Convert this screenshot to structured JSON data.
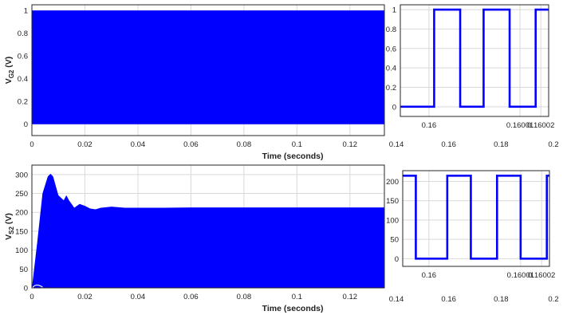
{
  "colors": {
    "signal": "#0000ff",
    "grid": "#d9d9d9",
    "axis": "#262626",
    "background": "#ffffff"
  },
  "chart_data": [
    {
      "id": "vg2-main",
      "type": "area",
      "description_series": "PWM gate signal switching between 0 and 1 at high frequency (dense band)",
      "xlabel": "Time (seconds)",
      "ylabel": "V",
      "ylabel_sub": "G2",
      "ylabel_unit": "(V)",
      "xlim": [
        0,
        0.133
      ],
      "ylim": [
        -0.1,
        1.05
      ],
      "xticks": [
        0,
        0.02,
        0.04,
        0.06,
        0.08,
        0.1,
        0.12
      ],
      "xticklabels": [
        "0",
        "0.02",
        "0.04",
        "0.06",
        "0.08",
        "0.1",
        "0.12"
      ],
      "yticks": [
        0,
        0.2,
        0.4,
        0.6,
        0.8,
        1
      ],
      "yticklabels": [
        "0",
        "0.2",
        "0.4",
        "0.6",
        "0.8",
        "1"
      ],
      "series": [
        {
          "x": [
            0,
            0.133
          ],
          "y_min": [
            0,
            0
          ],
          "y_max": [
            1,
            1
          ]
        }
      ],
      "grid": true
    },
    {
      "id": "vg2-zoom",
      "type": "line",
      "xlim": [
        0.159964,
        0.160021
      ],
      "ylim": [
        -0.1,
        1.05
      ],
      "xticks": [
        0.159975,
        0.16001,
        0.160018
      ],
      "xticklabels": [
        "0.16",
        "0.16001",
        "0.16002"
      ],
      "yticks": [
        0,
        0.2,
        0.4,
        0.6,
        0.8,
        1
      ],
      "yticklabels": [
        "0",
        "0.2",
        "0.4",
        "0.6",
        "0.8",
        "1"
      ],
      "series": [
        {
          "x": [
            0.159964,
            0.159977,
            0.159977,
            0.159987,
            0.159987,
            0.159996,
            0.159996,
            0.160006,
            0.160006,
            0.160016,
            0.160016,
            0.160021
          ],
          "y": [
            0,
            0,
            1,
            1,
            0,
            0,
            1,
            1,
            0,
            0,
            1,
            1
          ]
        }
      ],
      "grid": true
    },
    {
      "id": "vs2-main",
      "type": "area",
      "description_series": "Switch voltage, fast switching band; envelope overshoots to ~300 V then settles ~212 V",
      "xlabel": "Time (seconds)",
      "ylabel": "V",
      "ylabel_sub": "S2",
      "ylabel_unit": "(V)",
      "xlim": [
        0,
        0.133
      ],
      "ylim": [
        0,
        325
      ],
      "xticks": [
        0,
        0.02,
        0.04,
        0.06,
        0.08,
        0.1,
        0.12
      ],
      "xticklabels": [
        "0",
        "0.02",
        "0.04",
        "0.06",
        "0.08",
        "0.1",
        "0.12"
      ],
      "yticks": [
        0,
        50,
        100,
        150,
        200,
        250,
        300
      ],
      "yticklabels": [
        "0",
        "50",
        "100",
        "150",
        "200",
        "250",
        "300"
      ],
      "series": [
        {
          "x": [
            0,
            0.002,
            0.004,
            0.006,
            0.007,
            0.008,
            0.01,
            0.012,
            0.013,
            0.014,
            0.016,
            0.018,
            0.02,
            0.022,
            0.024,
            0.026,
            0.03,
            0.035,
            0.04,
            0.05,
            0.06,
            0.133
          ],
          "envelope": [
            0,
            120,
            250,
            295,
            302,
            295,
            245,
            232,
            245,
            232,
            212,
            222,
            217,
            210,
            208,
            212,
            215,
            212,
            212,
            212,
            213,
            213
          ]
        }
      ],
      "grid": true
    },
    {
      "id": "vs2-zoom",
      "type": "line",
      "xlim": [
        0.159965,
        0.160021
      ],
      "ylim": [
        -20,
        228
      ],
      "xticks": [
        0.159975,
        0.16001,
        0.160018
      ],
      "xticklabels": [
        "0.16",
        "0.16001",
        "0.16002"
      ],
      "yticks": [
        0,
        50,
        100,
        150,
        200
      ],
      "yticklabels": [
        "0",
        "50",
        "100",
        "150",
        "200"
      ],
      "series": [
        {
          "x": [
            0.159965,
            0.15997,
            0.15997,
            0.159982,
            0.159982,
            0.159991,
            0.159991,
            0.160001,
            0.160001,
            0.16001,
            0.16001,
            0.16002,
            0.16002,
            0.160021
          ],
          "y": [
            215,
            215,
            0,
            0,
            215,
            215,
            0,
            0,
            215,
            215,
            0,
            0,
            215,
            215
          ]
        }
      ],
      "grid": true
    },
    {
      "id": "shared-x-axis-top",
      "type": "axis",
      "xticks": [
        0.14,
        0.16,
        0.18,
        0.2
      ],
      "xticklabels": [
        "0.14",
        "0.16",
        "0.18",
        "0.2"
      ]
    },
    {
      "id": "shared-x-axis-bottom",
      "type": "axis",
      "xticks": [
        0.14,
        0.16,
        0.18,
        0.2
      ],
      "xticklabels": [
        "0.14",
        "0.16",
        "0.18",
        "0.2"
      ]
    }
  ]
}
